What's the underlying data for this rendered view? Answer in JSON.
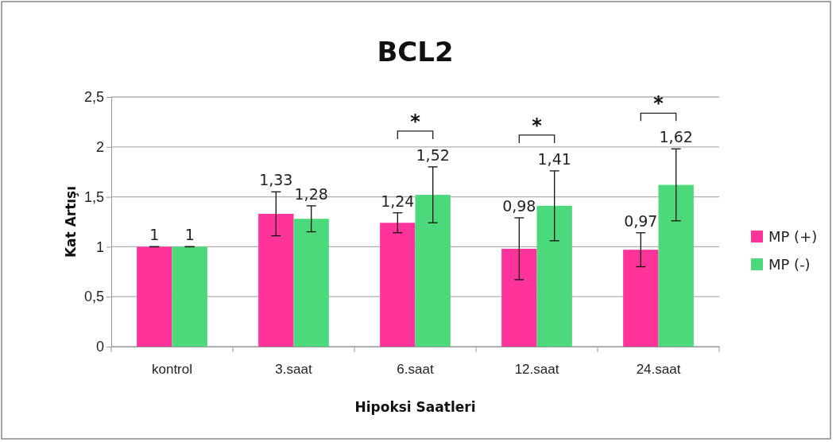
{
  "chart_data": {
    "type": "bar",
    "title": "BCL2",
    "xlabel": "Hipoksi Saatleri",
    "ylabel": "Kat Artışı",
    "categories": [
      "kontrol",
      "3.saat",
      "6.saat",
      "12.saat",
      "24.saat"
    ],
    "series": [
      {
        "name": "MP (+)",
        "color": "#ff3399",
        "values": [
          1,
          1.33,
          1.24,
          0.98,
          0.97
        ],
        "errors": [
          0,
          0.22,
          0.1,
          0.31,
          0.17
        ],
        "value_labels": [
          "1",
          "1,33",
          "1,24",
          "0,98",
          "0,97"
        ]
      },
      {
        "name": "MP (-)",
        "color": "#4cd97b",
        "values": [
          1,
          1.28,
          1.52,
          1.41,
          1.62
        ],
        "errors": [
          0,
          0.13,
          0.28,
          0.35,
          0.36
        ],
        "value_labels": [
          "1",
          "1,28",
          "1,52",
          "1,41",
          "1,62"
        ]
      }
    ],
    "ylim": [
      0,
      2.5
    ],
    "yticks": [
      0,
      {
        "value": 0.5,
        "label": "0,5"
      },
      1,
      {
        "value": 1.5,
        "label": "1,5"
      },
      2,
      {
        "value": 2.5,
        "label": "2,5"
      }
    ],
    "grid": "y",
    "legend": "right",
    "annotations": [
      "*",
      "*",
      "*"
    ]
  }
}
